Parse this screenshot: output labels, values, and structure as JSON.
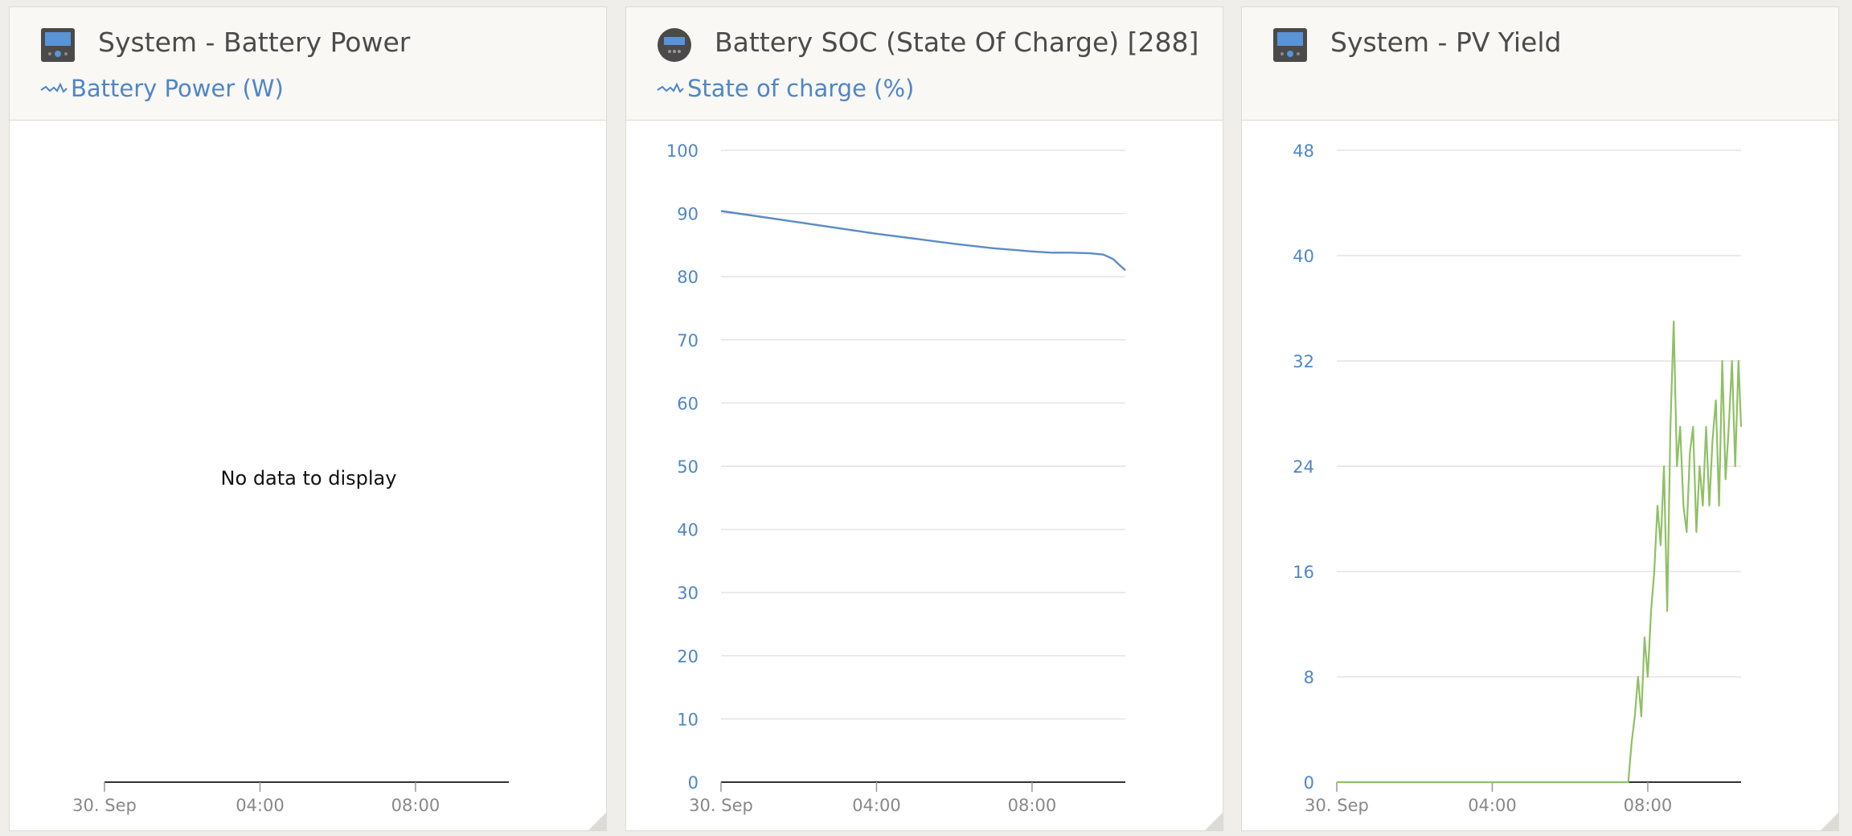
{
  "widgets": [
    {
      "title": "System - Battery Power",
      "series_label": "Battery Power (W)",
      "icon": "monitor-icon",
      "no_data_text": "No data to display"
    },
    {
      "title": "Battery SOC (State Of Charge) [288]",
      "series_label": "State of charge (%)",
      "icon": "battery-monitor-icon"
    },
    {
      "title": "System - PV Yield",
      "series_label": "",
      "icon": "monitor-icon"
    }
  ],
  "colors": {
    "accent": "#4f86c6",
    "soc_line": "#5b8cc4",
    "pv_line": "#8fc065",
    "grid": "#e4e4e4",
    "axis": "#333333",
    "tick_label": "#4f86c6",
    "x_tick_label": "#888888"
  },
  "chart_data": [
    {
      "type": "line",
      "title": "System - Battery Power",
      "series": [
        {
          "name": "Battery Power (W)",
          "values": []
        }
      ],
      "x_ticks": [
        "30. Sep",
        "04:00",
        "08:00"
      ],
      "y_ticks": [],
      "xlim": [
        "30. Sep 00:00",
        "30. Sep 10:24"
      ],
      "grid": false,
      "no_data": true
    },
    {
      "type": "line",
      "title": "Battery SOC (State Of Charge) [288]",
      "series": [
        {
          "name": "State of charge (%)",
          "x": [
            "00:00",
            "01:00",
            "02:00",
            "03:00",
            "04:00",
            "05:00",
            "06:00",
            "07:00",
            "08:00",
            "08:30",
            "09:00",
            "09:30",
            "09:50",
            "10:05",
            "10:24"
          ],
          "values": [
            90.4,
            89.5,
            88.6,
            87.7,
            86.8,
            86.0,
            85.2,
            84.5,
            84.0,
            83.8,
            83.8,
            83.7,
            83.5,
            82.8,
            81.0
          ]
        }
      ],
      "x_ticks": [
        "30. Sep",
        "04:00",
        "08:00"
      ],
      "y_ticks": [
        0,
        10,
        20,
        30,
        40,
        50,
        60,
        70,
        80,
        90,
        100
      ],
      "xlim": [
        "30. Sep 00:00",
        "30. Sep 10:24"
      ],
      "ylim": [
        0,
        100
      ],
      "grid": true
    },
    {
      "type": "line",
      "title": "System - PV Yield",
      "series": [
        {
          "name": "",
          "x": [
            "00:00",
            "07:30",
            "07:35",
            "07:40",
            "07:45",
            "07:50",
            "07:55",
            "08:00",
            "08:05",
            "08:10",
            "08:15",
            "08:20",
            "08:25",
            "08:30",
            "08:35",
            "08:40",
            "08:45",
            "08:50",
            "08:55",
            "09:00",
            "09:05",
            "09:10",
            "09:15",
            "09:20",
            "09:25",
            "09:30",
            "09:35",
            "09:40",
            "09:45",
            "09:50",
            "09:55",
            "10:00",
            "10:05",
            "10:10",
            "10:15",
            "10:20",
            "10:24"
          ],
          "values": [
            0,
            0,
            3,
            5,
            8,
            5,
            11,
            8,
            13,
            16,
            21,
            18,
            24,
            13,
            27,
            35,
            24,
            27,
            21,
            19,
            25,
            27,
            19,
            24,
            21,
            27,
            21,
            26,
            29,
            21,
            32,
            23,
            27,
            32,
            24,
            32,
            27
          ]
        }
      ],
      "x_ticks": [
        "30. Sep",
        "04:00",
        "08:00"
      ],
      "y_ticks": [
        0,
        8,
        16,
        24,
        32,
        40,
        48
      ],
      "xlim": [
        "30. Sep 00:00",
        "30. Sep 10:24"
      ],
      "ylim": [
        0,
        48
      ],
      "grid": true
    }
  ]
}
